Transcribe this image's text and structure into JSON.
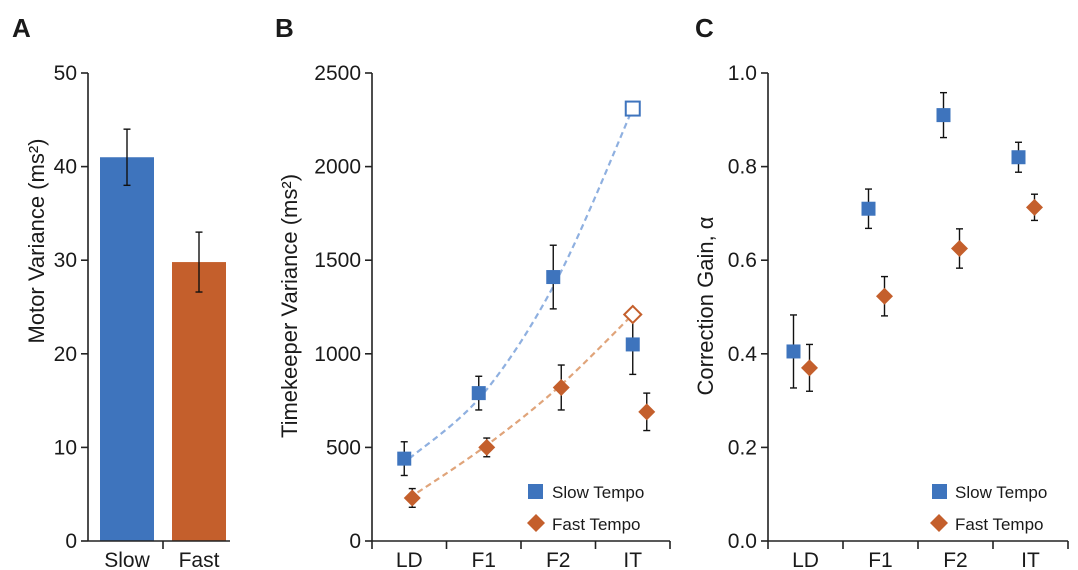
{
  "colors": {
    "slow": "#3e74bd",
    "fast": "#c45f2c",
    "slow_line": "#8fb0e0",
    "fast_line": "#e0a47a"
  },
  "chart_data": [
    {
      "panel": "A",
      "type": "bar",
      "ylabel": "Motor Variance (ms²)",
      "ylim": [
        0,
        50
      ],
      "yticks": [
        0,
        10,
        20,
        30,
        40,
        50
      ],
      "categories": [
        "Slow",
        "Fast"
      ],
      "values": [
        41,
        29.8
      ],
      "errors": [
        3,
        3.2
      ]
    },
    {
      "panel": "B",
      "type": "scatter",
      "ylabel": "Timekeeper Variance (ms²)",
      "ylim": [
        0,
        2500
      ],
      "yticks": [
        0,
        500,
        1000,
        1500,
        2000,
        2500
      ],
      "categories": [
        "LD",
        "F1",
        "F2",
        "IT"
      ],
      "legend_position": "bottom-right",
      "series": [
        {
          "name": "Slow Tempo",
          "marker": "square",
          "values": [
            440,
            790,
            1410,
            1050
          ],
          "errors": [
            90,
            90,
            170,
            160
          ]
        },
        {
          "name": "Fast Tempo",
          "marker": "diamond",
          "values": [
            230,
            500,
            820,
            690
          ],
          "errors": [
            50,
            50,
            120,
            100
          ]
        }
      ],
      "predicted": [
        {
          "series": "Slow Tempo",
          "marker": "open-square",
          "x": 3,
          "y": 2310,
          "curve": [
            440,
            790,
            1410,
            2310
          ]
        },
        {
          "series": "Fast Tempo",
          "marker": "open-diamond",
          "x": 3,
          "y": 1210,
          "curve": [
            230,
            500,
            820,
            1210
          ]
        }
      ]
    },
    {
      "panel": "C",
      "type": "scatter",
      "ylabel": "Correction Gain, α",
      "ylim": [
        0,
        1
      ],
      "yticks": [
        "0.0",
        "0.2",
        "0.4",
        "0.6",
        "0.8",
        "1.0"
      ],
      "categories": [
        "LD",
        "F1",
        "F2",
        "IT"
      ],
      "legend_position": "bottom-right",
      "series": [
        {
          "name": "Slow Tempo",
          "marker": "square",
          "values": [
            0.405,
            0.71,
            0.91,
            0.82
          ],
          "errors": [
            0.078,
            0.042,
            0.048,
            0.032
          ]
        },
        {
          "name": "Fast Tempo",
          "marker": "diamond",
          "values": [
            0.37,
            0.523,
            0.625,
            0.713
          ],
          "errors": [
            0.05,
            0.042,
            0.042,
            0.028
          ]
        }
      ]
    }
  ]
}
